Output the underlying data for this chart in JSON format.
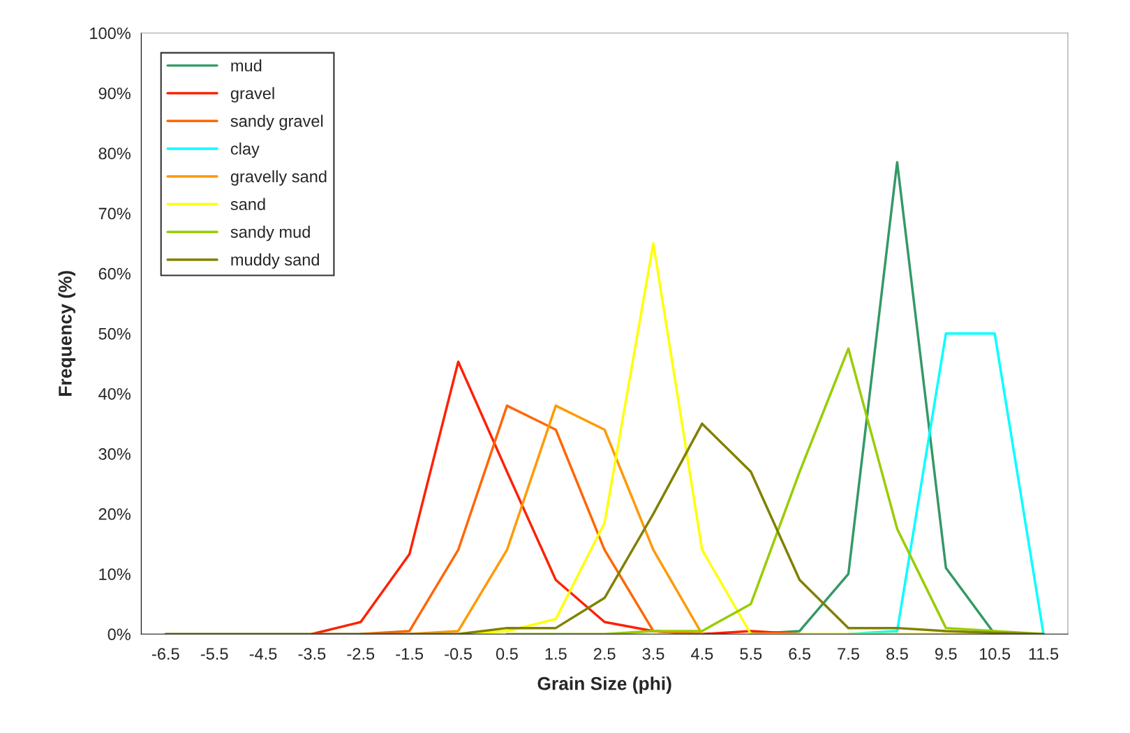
{
  "chart_data": {
    "type": "line",
    "xlabel": "Grain Size (phi)",
    "ylabel": "Frequency (%)",
    "categories": [
      "-6.5",
      "-5.5",
      "-4.5",
      "-3.5",
      "-2.5",
      "-1.5",
      "-0.5",
      "0.5",
      "1.5",
      "2.5",
      "3.5",
      "4.5",
      "5.5",
      "6.5",
      "7.5",
      "8.5",
      "9.5",
      "10.5",
      "11.5"
    ],
    "ylim": [
      0,
      100
    ],
    "yticks": [
      {
        "value": 0,
        "label": "0%"
      },
      {
        "value": 10,
        "label": "10%"
      },
      {
        "value": 20,
        "label": "20%"
      },
      {
        "value": 30,
        "label": "30%"
      },
      {
        "value": 40,
        "label": "40%"
      },
      {
        "value": 50,
        "label": "50%"
      },
      {
        "value": 60,
        "label": "60%"
      },
      {
        "value": 70,
        "label": "70%"
      },
      {
        "value": 80,
        "label": "80%"
      },
      {
        "value": 90,
        "label": "90%"
      },
      {
        "value": 100,
        "label": "100%"
      }
    ],
    "grid": false,
    "legend": "top left",
    "marker": "none",
    "line_style": "solid",
    "series": [
      {
        "name": "mud",
        "color": "#339966",
        "values": [
          null,
          null,
          null,
          null,
          null,
          null,
          null,
          null,
          null,
          null,
          null,
          null,
          0,
          0.5,
          10,
          78.5,
          11,
          0,
          null
        ]
      },
      {
        "name": "gravel",
        "color": "#ff2000",
        "values": [
          null,
          null,
          null,
          0,
          2,
          13.3,
          45.3,
          27,
          9,
          2,
          0.5,
          0,
          0.5,
          0,
          null,
          null,
          null,
          null,
          null
        ]
      },
      {
        "name": "sandy gravel",
        "color": "#ff6600",
        "values": [
          null,
          null,
          null,
          null,
          0,
          0.5,
          14,
          38,
          34,
          14,
          0.5,
          0,
          null,
          null,
          null,
          null,
          null,
          null,
          null
        ]
      },
      {
        "name": "clay",
        "color": "#00ffff",
        "values": [
          null,
          null,
          null,
          null,
          null,
          null,
          null,
          null,
          null,
          null,
          null,
          null,
          null,
          null,
          0,
          0.5,
          50,
          50,
          0
        ]
      },
      {
        "name": "gravelly sand",
        "color": "#ff9900",
        "values": [
          null,
          null,
          null,
          null,
          null,
          0,
          0.5,
          14,
          38,
          34,
          14,
          0,
          null,
          null,
          null,
          null,
          null,
          null,
          null
        ]
      },
      {
        "name": "sand",
        "color": "#ffff00",
        "values": [
          null,
          null,
          null,
          null,
          null,
          null,
          0,
          0.5,
          2.5,
          18.5,
          65,
          14,
          0,
          0,
          0,
          0,
          0,
          0,
          null
        ]
      },
      {
        "name": "sandy mud",
        "color": "#99cc00",
        "values": [
          null,
          null,
          null,
          null,
          null,
          null,
          null,
          0,
          0,
          0,
          0.5,
          0.5,
          5,
          27,
          47.5,
          17.5,
          1,
          0.5,
          0
        ]
      },
      {
        "name": "muddy sand",
        "color": "#808000",
        "values": [
          0,
          0,
          0,
          0,
          0,
          0,
          0,
          1,
          1,
          6,
          20,
          35,
          27,
          9,
          1,
          1,
          0.5,
          0.2,
          0
        ]
      }
    ]
  }
}
